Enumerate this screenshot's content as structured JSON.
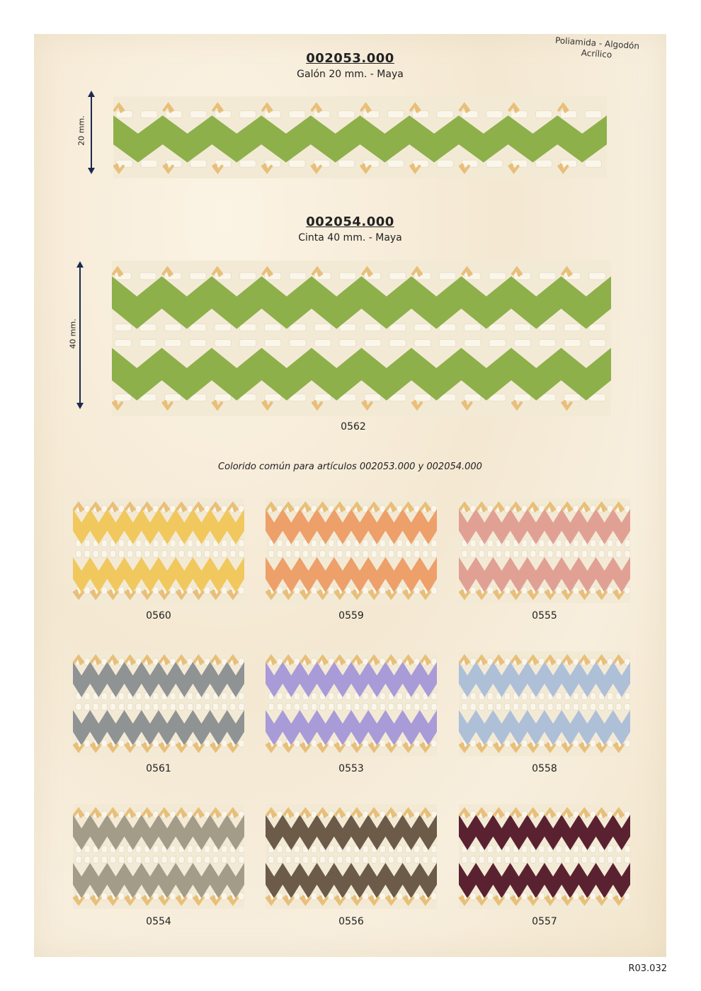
{
  "composition": {
    "line1": "Poliamida - Algodón",
    "line2": "Acrílico"
  },
  "products": [
    {
      "code": "002053.000",
      "description": "Galón 20 mm. - Maya",
      "dimension_label": "20 mm.",
      "colour": "#8db04a"
    },
    {
      "code": "002054.000",
      "description": "Cinta 40 mm. - Maya",
      "dimension_label": "40 mm.",
      "colour": "#8db04a",
      "swatch_code": "0562"
    }
  ],
  "common_note": "Colorido común para artículos 002053.000 y 002054.000",
  "colourways": [
    {
      "code": "0560",
      "colour": "#f1c85e"
    },
    {
      "code": "0559",
      "colour": "#eda06a"
    },
    {
      "code": "0555",
      "colour": "#e0a194"
    },
    {
      "code": "0561",
      "colour": "#8f9394"
    },
    {
      "code": "0553",
      "colour": "#a99ad8"
    },
    {
      "code": "0558",
      "colour": "#aebfd8"
    },
    {
      "code": "0554",
      "colour": "#a39c88"
    },
    {
      "code": "0556",
      "colour": "#6b5b48"
    },
    {
      "code": "0557",
      "colour": "#5a2230"
    }
  ],
  "page_ref": "R03.032",
  "colors": {
    "cream": "#f3ead6",
    "tie": "#e8bf7a",
    "arrow": "#1b2a52"
  }
}
